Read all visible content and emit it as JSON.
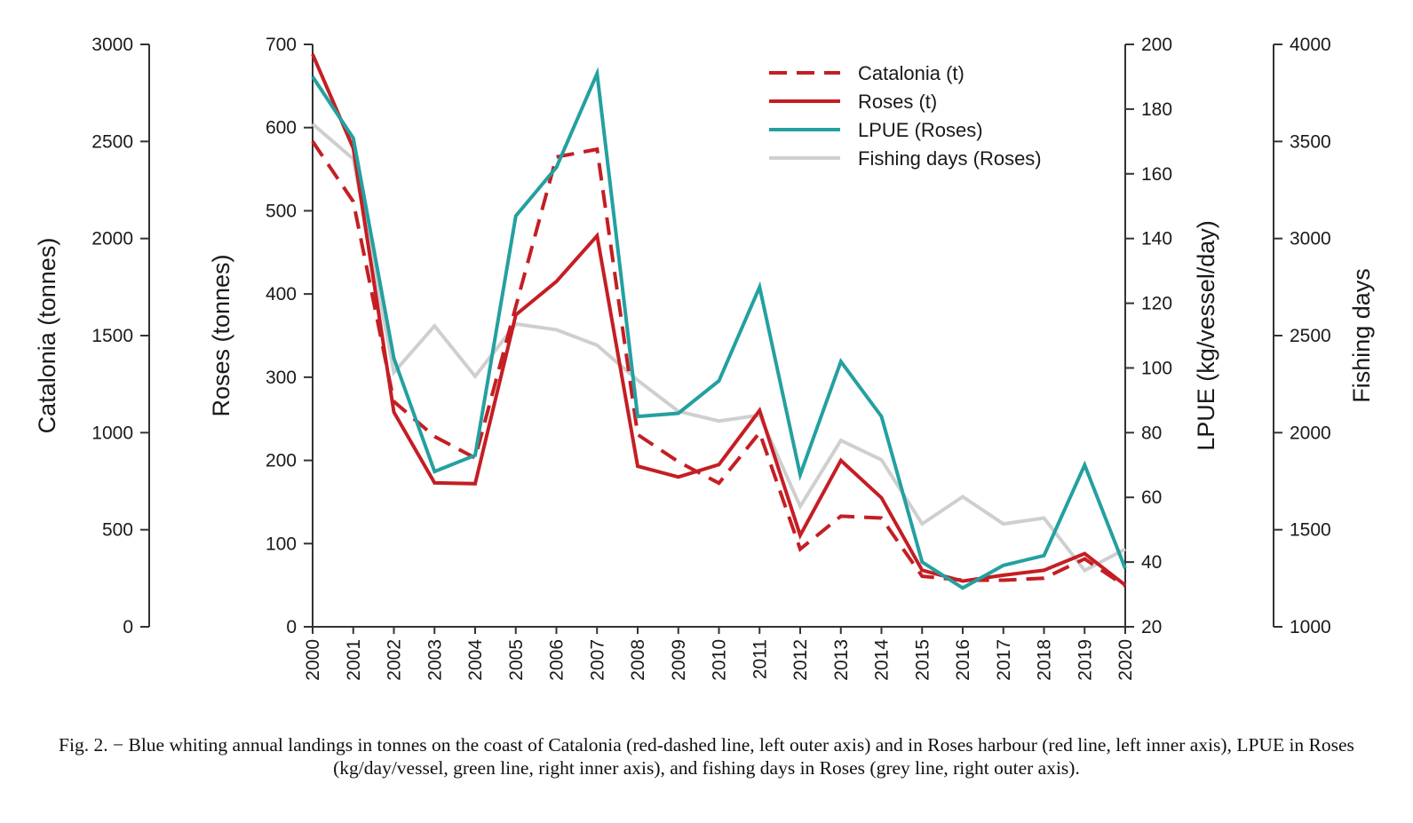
{
  "chart_data": {
    "type": "line",
    "years": [
      "2000",
      "2001",
      "2002",
      "2003",
      "2004",
      "2005",
      "2006",
      "2007",
      "2008",
      "2009",
      "2010",
      "2011",
      "2012",
      "2013",
      "2014",
      "2015",
      "2016",
      "2017",
      "2018",
      "2019",
      "2020"
    ],
    "axes": {
      "catalonia": {
        "label": "Catalonia (tonnes)",
        "range": [
          0,
          3000
        ],
        "ticks": [
          "0",
          "500",
          "1000",
          "1500",
          "2000",
          "2500",
          "3000"
        ]
      },
      "roses": {
        "label": "Roses (tonnes)",
        "range": [
          0,
          700
        ],
        "ticks": [
          "0",
          "100",
          "200",
          "300",
          "400",
          "500",
          "600",
          "700"
        ]
      },
      "lpue": {
        "label": "LPUE (kg/vessel/day)",
        "range": [
          20,
          200
        ],
        "ticks": [
          "20",
          "40",
          "60",
          "80",
          "100",
          "120",
          "140",
          "160",
          "180",
          "200"
        ]
      },
      "fishing_days": {
        "label": "Fishing days",
        "range": [
          1000,
          4000
        ],
        "ticks": [
          "1000",
          "1500",
          "2000",
          "2500",
          "3000",
          "3500",
          "4000"
        ]
      }
    },
    "series": [
      {
        "name": "Catalonia (t)",
        "axis": "catalonia",
        "color": "#c41e24",
        "style": "dashed",
        "values": [
          2500,
          2190,
          1160,
          980,
          870,
          1650,
          2420,
          2460,
          990,
          850,
          740,
          1000,
          400,
          570,
          560,
          260,
          240,
          240,
          250,
          350,
          210
        ]
      },
      {
        "name": "Roses (t)",
        "axis": "roses",
        "color": "#c41e24",
        "style": "solid",
        "values": [
          688,
          575,
          258,
          173,
          172,
          375,
          415,
          470,
          193,
          180,
          195,
          260,
          110,
          200,
          155,
          68,
          55,
          62,
          68,
          88,
          50
        ]
      },
      {
        "name": "LPUE (Roses)",
        "axis": "lpue",
        "color": "#24a0a0",
        "style": "solid",
        "values": [
          190,
          171,
          103,
          68,
          73,
          147,
          162,
          191,
          85,
          86,
          96,
          125,
          67,
          102,
          85,
          40,
          32,
          39,
          42,
          70,
          38
        ]
      },
      {
        "name": "Fishing days (Roses)",
        "axis": "fishing_days",
        "color": "#cfcfcf",
        "style": "solid",
        "values": [
          3590,
          3410,
          2310,
          2550,
          2290,
          2560,
          2530,
          2450,
          2270,
          2110,
          2060,
          2090,
          1620,
          1960,
          1860,
          1530,
          1670,
          1530,
          1560,
          1290,
          1400
        ]
      }
    ],
    "legend_position": "top-right",
    "grid": false
  },
  "caption": "Fig. 2. − Blue whiting annual landings in tonnes on the coast of Catalonia (red-dashed line, left outer axis) and in Roses harbour (red line, left inner axis), LPUE in Roses (kg/day/vessel, green line, right inner axis), and fishing days in Roses (grey line, right outer axis)."
}
